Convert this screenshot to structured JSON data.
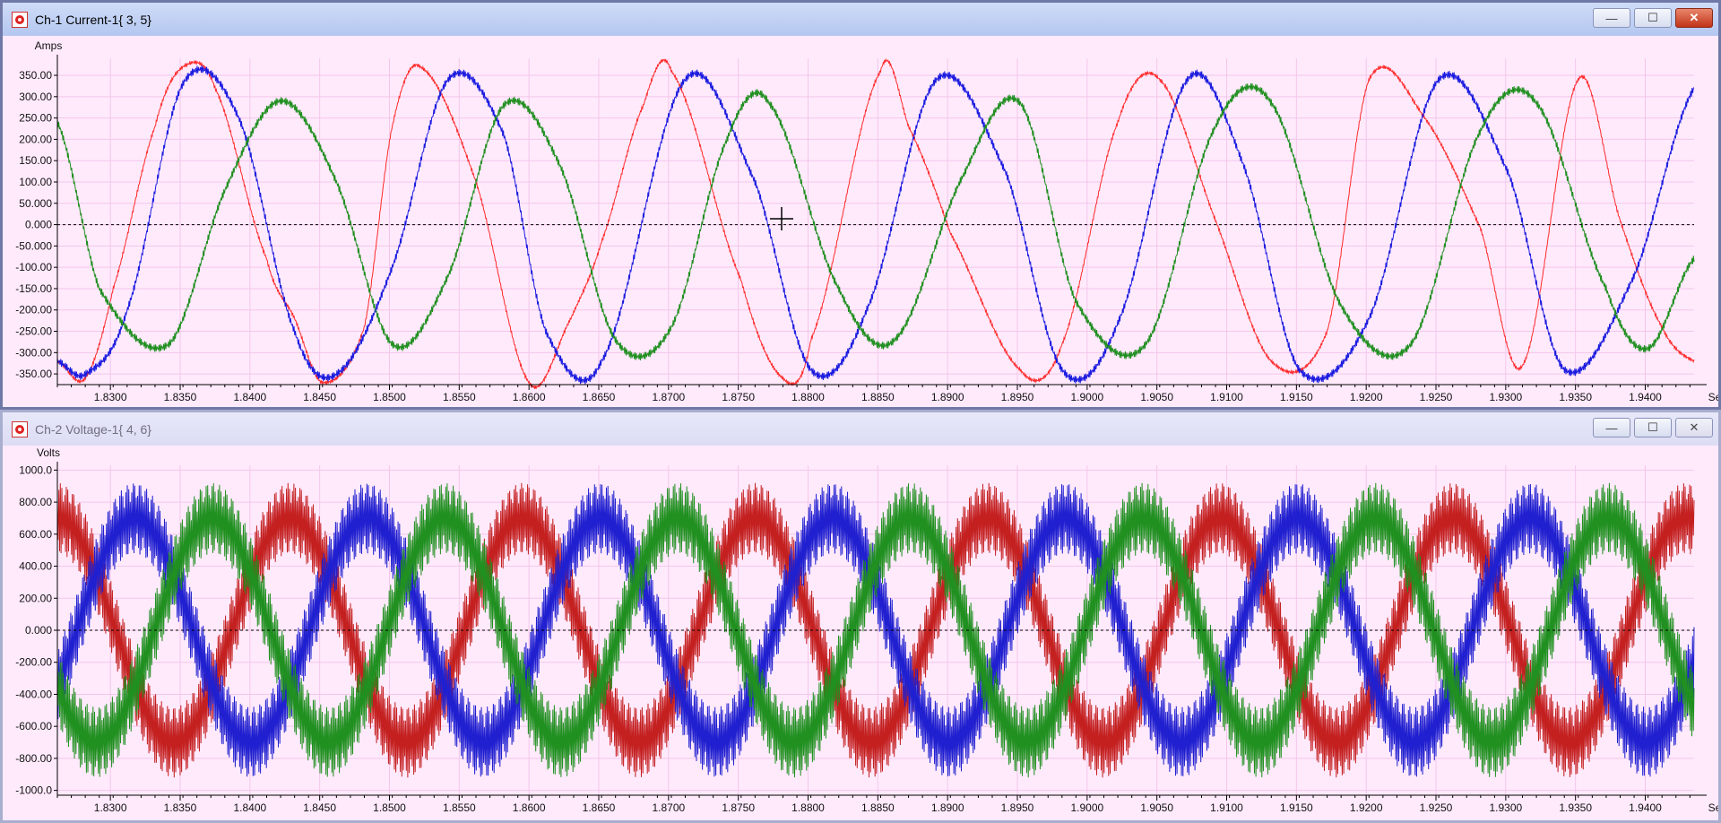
{
  "windows": [
    {
      "title": "Ch-1 Current-1{ 3, 5}",
      "controls": {
        "minimize": "—",
        "maximize": "☐",
        "close": "✕"
      }
    },
    {
      "title": "Ch-2 Voltage-1{ 4, 6}",
      "controls": {
        "minimize": "—",
        "maximize": "☐",
        "close": "✕"
      }
    }
  ],
  "chart_data": [
    {
      "type": "line",
      "ylabel": "Amps",
      "xlabel": "Sec",
      "xlim": [
        1.8262,
        1.9435
      ],
      "ylim": [
        -375,
        390
      ],
      "x_ticks": [
        "1.8300",
        "1.8350",
        "1.8400",
        "1.8450",
        "1.8500",
        "1.8550",
        "1.8600",
        "1.8650",
        "1.8700",
        "1.8750",
        "1.8800",
        "1.8850",
        "1.8900",
        "1.8950",
        "1.9000",
        "1.9050",
        "1.9100",
        "1.9150",
        "1.9200",
        "1.9250",
        "1.9300",
        "1.9350",
        "1.9400"
      ],
      "y_ticks": [
        "350.00",
        "300.00",
        "250.00",
        "200.00",
        "150.00",
        "100.00",
        "50.000",
        "0.000",
        "-50.000",
        "-100.00",
        "-150.00",
        "-200.00",
        "-250.00",
        "-300.00",
        "-350.00"
      ],
      "series": [
        {
          "color": "#ff2a2a",
          "x": [
            1.8262,
            1.8282,
            1.8302,
            1.8332,
            1.8352,
            1.8375,
            1.8412,
            1.8432,
            1.8452,
            1.8482,
            1.8502,
            1.8522,
            1.8562,
            1.86,
            1.863,
            1.8652,
            1.8682,
            1.8702,
            1.8752,
            1.8782,
            1.8802,
            1.8852,
            1.8872,
            1.8902,
            1.8952,
            1.8982,
            1.9022,
            1.9052,
            1.9092,
            1.9132,
            1.9172,
            1.9202,
            1.9242,
            1.9282,
            1.9312,
            1.9352,
            1.9382,
            1.9412,
            1.9435
          ],
          "y": [
            -320,
            -360,
            -150,
            230,
            370,
            320,
            -80,
            -220,
            -370,
            -240,
            230,
            370,
            100,
            -370,
            -220,
            -40,
            280,
            360,
            -130,
            -360,
            -270,
            360,
            230,
            -20,
            -340,
            -280,
            240,
            340,
            10,
            -320,
            -250,
            340,
            250,
            -10,
            -330,
            340,
            10,
            -240,
            -320
          ]
        },
        {
          "color": "#1a1adf",
          "x": [
            1.8262,
            1.8282,
            1.8312,
            1.8352,
            1.8392,
            1.8432,
            1.8462,
            1.8502,
            1.8542,
            1.8582,
            1.8612,
            1.8652,
            1.8712,
            1.8762,
            1.8802,
            1.8842,
            1.8892,
            1.8942,
            1.8982,
            1.9022,
            1.9072,
            1.9112,
            1.9152,
            1.9202,
            1.9252,
            1.9302,
            1.9342,
            1.9392,
            1.9435
          ],
          "y": [
            -320,
            -350,
            -200,
            330,
            250,
            -250,
            -350,
            -100,
            340,
            210,
            -250,
            -320,
            340,
            100,
            -340,
            -200,
            340,
            120,
            -340,
            -230,
            340,
            140,
            -340,
            -220,
            340,
            120,
            -340,
            -120,
            320
          ]
        },
        {
          "color": "#1f8f1f",
          "x": [
            1.8262,
            1.8292,
            1.8342,
            1.8382,
            1.8422,
            1.8462,
            1.8502,
            1.8542,
            1.8582,
            1.8622,
            1.8662,
            1.8702,
            1.8742,
            1.8772,
            1.8822,
            1.8862,
            1.8912,
            1.8952,
            1.8992,
            1.9042,
            1.9092,
            1.9132,
            1.9182,
            1.9232,
            1.9282,
            1.9322,
            1.9372,
            1.9402,
            1.9435
          ],
          "y": [
            240,
            -150,
            -280,
            80,
            290,
            100,
            -280,
            -120,
            280,
            140,
            -270,
            -240,
            200,
            285,
            -150,
            -270,
            120,
            285,
            -180,
            -280,
            230,
            285,
            -190,
            -280,
            220,
            285,
            -150,
            -290,
            -80
          ]
        }
      ]
    },
    {
      "type": "line",
      "ylabel": "Volts",
      "xlabel": "Sec",
      "xlim": [
        1.8262,
        1.9435
      ],
      "ylim": [
        -1030,
        1030
      ],
      "x_ticks": [
        "1.8300",
        "1.8350",
        "1.8400",
        "1.8450",
        "1.8500",
        "1.8550",
        "1.8600",
        "1.8650",
        "1.8700",
        "1.8750",
        "1.8800",
        "1.8850",
        "1.8900",
        "1.8950",
        "1.9000",
        "1.9050",
        "1.9100",
        "1.9150",
        "1.9200",
        "1.9250",
        "1.9300",
        "1.9350",
        "1.9400"
      ],
      "y_ticks": [
        "1000.0",
        "800.00",
        "600.00",
        "400.00",
        "200.00",
        "0.000",
        "-200.00",
        "-400.00",
        "-600.00",
        "-800.00",
        "-1000.0"
      ],
      "series": [
        {
          "color": "#c42020",
          "amplitude": 700,
          "period": 0.01667,
          "phase": 1.57,
          "noise": 220
        },
        {
          "color": "#2020d0",
          "amplitude": 700,
          "period": 0.01667,
          "phase": -0.52,
          "noise": 220
        },
        {
          "color": "#209020",
          "amplitude": 700,
          "period": 0.01667,
          "phase": -2.62,
          "noise": 220
        }
      ]
    }
  ]
}
